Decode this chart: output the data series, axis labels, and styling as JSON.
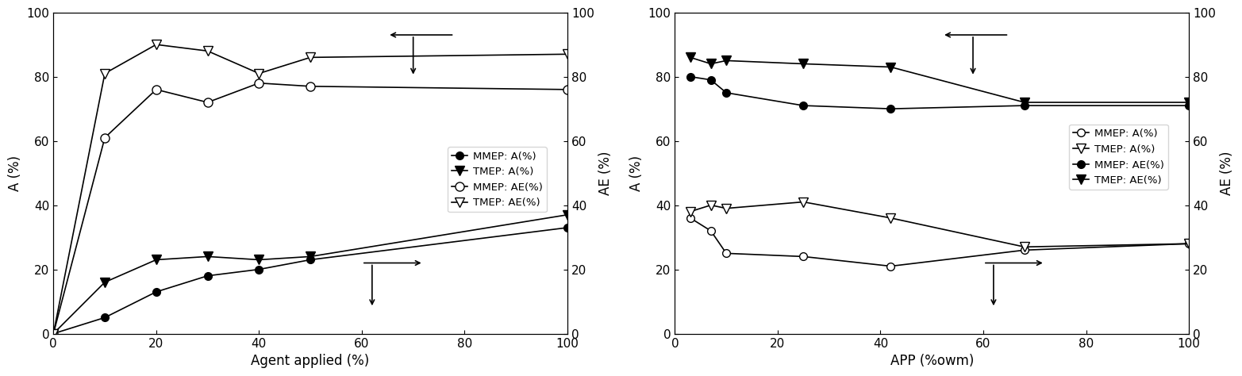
{
  "left": {
    "xlabel": "Agent applied (%)",
    "ylabel_left": "A (%)",
    "ylabel_right": "AE (%)",
    "xlim": [
      0,
      100
    ],
    "ylim_left": [
      0,
      100
    ],
    "ylim_right": [
      0,
      100
    ],
    "xticks": [
      0,
      20,
      40,
      60,
      80,
      100
    ],
    "yticks": [
      0,
      20,
      40,
      60,
      80,
      100
    ],
    "mmep_A_x": [
      0,
      10,
      20,
      30,
      40,
      50,
      100
    ],
    "mmep_A_y": [
      0,
      5,
      13,
      18,
      20,
      23,
      33
    ],
    "tmep_A_x": [
      0,
      10,
      20,
      30,
      40,
      50,
      100
    ],
    "tmep_A_y": [
      0,
      16,
      23,
      24,
      23,
      24,
      37
    ],
    "mmep_AE_x": [
      0,
      10,
      20,
      30,
      40,
      50,
      100
    ],
    "mmep_AE_y": [
      0,
      61,
      76,
      72,
      78,
      77,
      76
    ],
    "tmep_AE_x": [
      0,
      10,
      20,
      30,
      40,
      50,
      100
    ],
    "tmep_AE_y": [
      0,
      81,
      90,
      88,
      81,
      86,
      87
    ]
  },
  "right": {
    "xlabel": "APP (%owm)",
    "ylabel_left": "A (%)",
    "ylabel_right": "AE (%)",
    "xlim": [
      0,
      100
    ],
    "ylim_left": [
      0,
      100
    ],
    "ylim_right": [
      0,
      100
    ],
    "xticks": [
      0,
      20,
      40,
      60,
      80,
      100
    ],
    "yticks": [
      0,
      20,
      40,
      60,
      80,
      100
    ],
    "mmep_A_x": [
      3,
      7,
      10,
      25,
      42,
      68,
      100
    ],
    "mmep_A_y": [
      36,
      32,
      25,
      24,
      21,
      26,
      28
    ],
    "tmep_A_x": [
      3,
      7,
      10,
      25,
      42,
      68,
      100
    ],
    "tmep_A_y": [
      38,
      40,
      39,
      41,
      36,
      27,
      28
    ],
    "mmep_AE_x": [
      3,
      7,
      10,
      25,
      42,
      68,
      100
    ],
    "mmep_AE_y": [
      80,
      79,
      75,
      71,
      70,
      71,
      71
    ],
    "tmep_AE_x": [
      3,
      7,
      10,
      25,
      42,
      68,
      100
    ],
    "tmep_AE_y": [
      86,
      84,
      85,
      84,
      83,
      72,
      72
    ]
  }
}
